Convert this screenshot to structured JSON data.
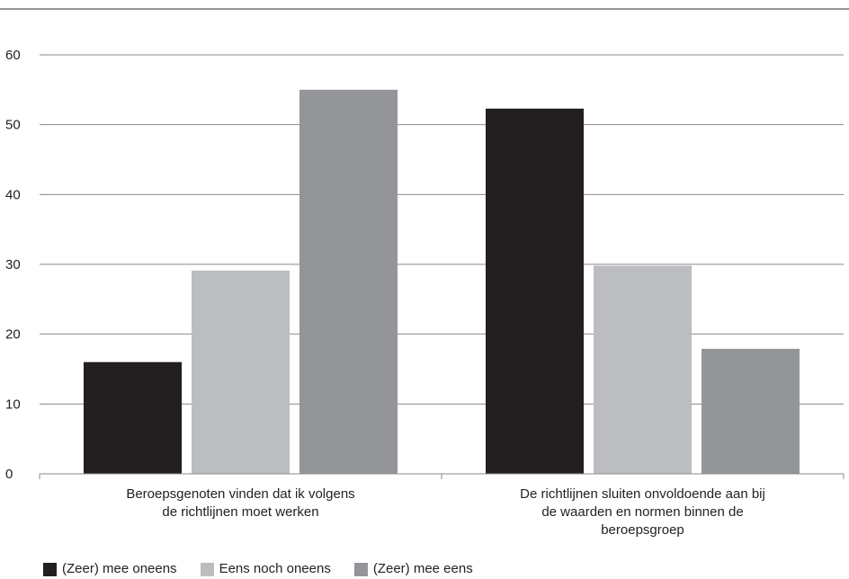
{
  "chart_data": {
    "type": "bar",
    "title": "",
    "xlabel": "",
    "ylabel": "",
    "ylim": [
      0,
      60
    ],
    "yticks": [
      0,
      10,
      20,
      30,
      40,
      50,
      60
    ],
    "grid": true,
    "legend_position": "bottom-left",
    "categories": [
      [
        "Beroepsgenoten vinden dat ik volgens",
        "de richtlijnen moet werken"
      ],
      [
        "De richtlijnen sluiten onvoldoende aan bij",
        "de waarden en normen binnen de",
        "beroepsgroep"
      ]
    ],
    "series": [
      {
        "name": "(Zeer) mee oneens",
        "color": "#231f20",
        "values": [
          16,
          52.3
        ]
      },
      {
        "name": "Eens noch oneens",
        "color": "#bcbdc0",
        "values": [
          29.1,
          29.8
        ]
      },
      {
        "name": "(Zeer) mee eens",
        "color": "#939598",
        "values": [
          55,
          17.9
        ]
      }
    ]
  }
}
